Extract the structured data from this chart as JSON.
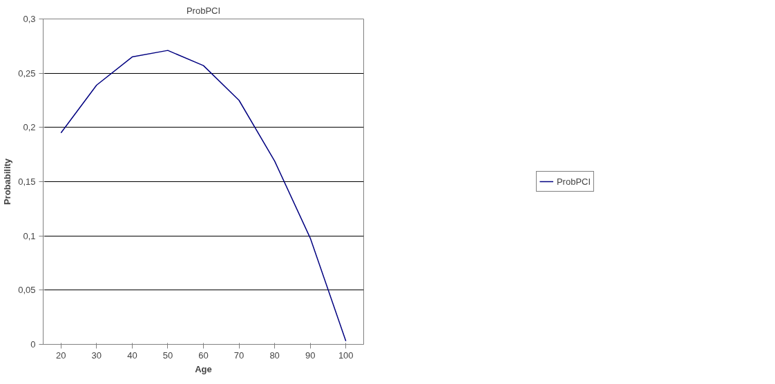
{
  "chart_data": {
    "type": "line",
    "title": "ProbPCI",
    "xlabel": "Age",
    "ylabel": "Probability",
    "categories": [
      "20",
      "30",
      "40",
      "50",
      "60",
      "70",
      "80",
      "90",
      "100"
    ],
    "series": [
      {
        "name": "ProbPCI",
        "color": "#000080",
        "values": [
          0.195,
          0.239,
          0.265,
          0.271,
          0.257,
          0.225,
          0.169,
          0.098,
          0.003
        ]
      }
    ],
    "ylim": [
      0,
      0.3
    ],
    "yticks": [
      {
        "value": 0,
        "label": "0"
      },
      {
        "value": 0.05,
        "label": "0,05"
      },
      {
        "value": 0.1,
        "label": "0,1"
      },
      {
        "value": 0.15,
        "label": "0,15"
      },
      {
        "value": 0.2,
        "label": "0,2"
      },
      {
        "value": 0.25,
        "label": "0,25"
      },
      {
        "value": 0.3,
        "label": "0,3"
      }
    ],
    "grid": "y",
    "legend": "right",
    "marker": "none",
    "line_style": "solid"
  }
}
